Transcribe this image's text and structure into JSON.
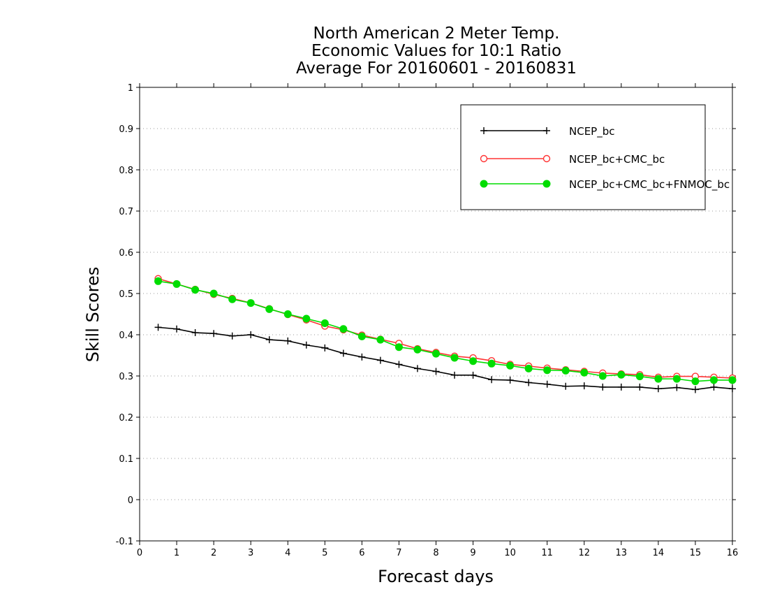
{
  "chart_data": {
    "type": "line",
    "title": [
      "North American 2 Meter Temp.",
      "Economic Values for 10:1 Ratio",
      "Average For 20160601 - 20160831"
    ],
    "xlabel": "Forecast days",
    "ylabel": "Skill Scores",
    "xlim": [
      0,
      16
    ],
    "ylim": [
      -0.1,
      1
    ],
    "x_ticks": [
      0,
      1,
      2,
      3,
      4,
      5,
      6,
      7,
      8,
      9,
      10,
      11,
      12,
      13,
      14,
      15,
      16
    ],
    "x_tick_labels": [
      "0",
      "1",
      "2",
      "3",
      "4",
      "5",
      "6",
      "7",
      "8",
      "9",
      "10",
      "11",
      "12",
      "13",
      "14",
      "15",
      "16"
    ],
    "y_ticks": [
      -0.1,
      0,
      0.1,
      0.2,
      0.3,
      0.4,
      0.5,
      0.6,
      0.7,
      0.8,
      0.9,
      1
    ],
    "y_tick_labels": [
      "-0.1",
      "0",
      "0.1",
      "0.2",
      "0.3",
      "0.4",
      "0.5",
      "0.6",
      "0.7",
      "0.8",
      "0.9",
      "1"
    ],
    "grid": true,
    "legend_position": "top-right",
    "x": [
      0.5,
      1,
      1.5,
      2,
      2.5,
      3,
      3.5,
      4,
      4.5,
      5,
      5.5,
      6,
      6.5,
      7,
      7.5,
      8,
      8.5,
      9,
      9.5,
      10,
      10.5,
      11,
      11.5,
      12,
      12.5,
      13,
      13.5,
      14,
      14.5,
      15,
      15.5,
      16
    ],
    "series": [
      {
        "name": "NCEP_bc",
        "color": "#000000",
        "marker": "plus",
        "values": [
          0.418,
          0.414,
          0.405,
          0.403,
          0.397,
          0.4,
          0.388,
          0.385,
          0.375,
          0.368,
          0.355,
          0.346,
          0.338,
          0.328,
          0.318,
          0.311,
          0.302,
          0.302,
          0.291,
          0.29,
          0.284,
          0.28,
          0.275,
          0.276,
          0.273,
          0.273,
          0.273,
          0.269,
          0.272,
          0.267,
          0.273,
          0.269
        ]
      },
      {
        "name": "NCEP_bc+CMC_bc",
        "color": "#ff3333",
        "marker": "open-circle",
        "values": [
          0.536,
          0.523,
          0.51,
          0.498,
          0.488,
          0.477,
          0.463,
          0.449,
          0.436,
          0.421,
          0.412,
          0.399,
          0.389,
          0.379,
          0.366,
          0.357,
          0.348,
          0.344,
          0.337,
          0.328,
          0.324,
          0.319,
          0.315,
          0.311,
          0.307,
          0.305,
          0.303,
          0.297,
          0.299,
          0.299,
          0.297,
          0.295
        ]
      },
      {
        "name": "NCEP_bc+CMC_bc+FNMOC_bc",
        "color": "#00dd00",
        "marker": "filled-circle",
        "values": [
          0.53,
          0.523,
          0.509,
          0.5,
          0.486,
          0.477,
          0.462,
          0.45,
          0.439,
          0.428,
          0.414,
          0.396,
          0.388,
          0.37,
          0.364,
          0.354,
          0.344,
          0.336,
          0.33,
          0.325,
          0.318,
          0.314,
          0.313,
          0.308,
          0.3,
          0.303,
          0.299,
          0.293,
          0.293,
          0.287,
          0.29,
          0.29
        ]
      }
    ]
  }
}
